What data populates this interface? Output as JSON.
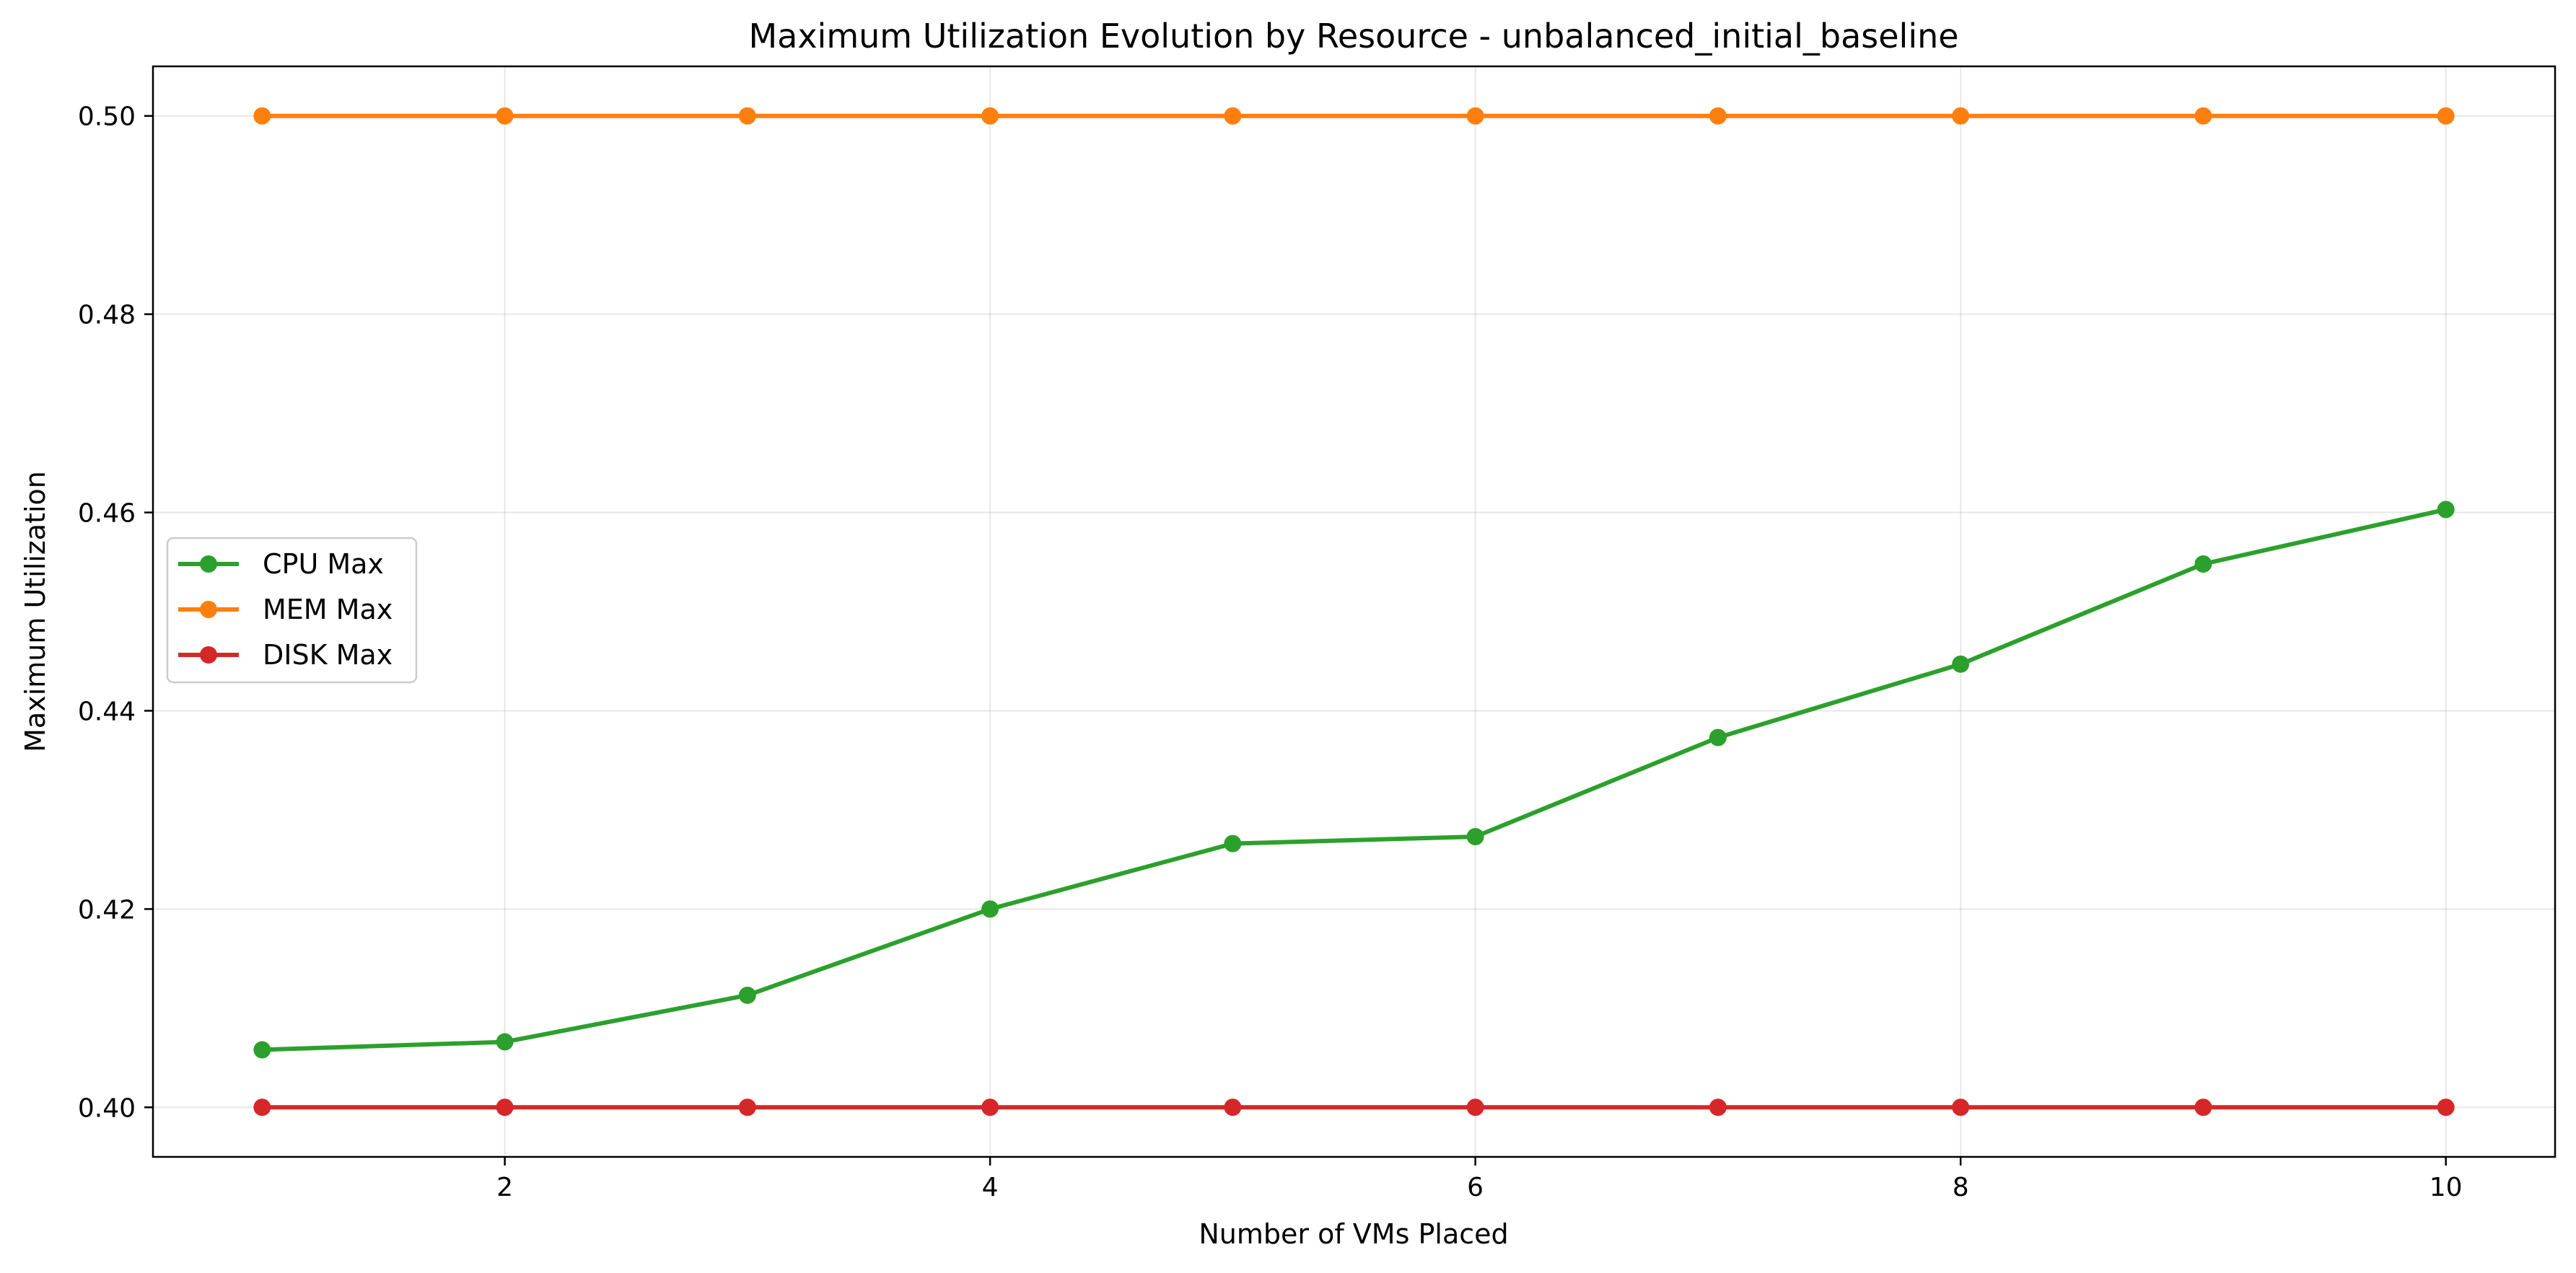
{
  "chart_data": {
    "type": "line",
    "title": "Maximum Utilization Evolution by Resource - unbalanced_initial_baseline",
    "xlabel": "Number of VMs Placed",
    "ylabel": "Maximum Utilization",
    "x": [
      1,
      2,
      3,
      4,
      5,
      6,
      7,
      8,
      9,
      10
    ],
    "xlim": [
      0.55,
      10.45
    ],
    "ylim": [
      0.395,
      0.505
    ],
    "xticks": [
      2,
      4,
      6,
      8,
      10
    ],
    "yticks": [
      0.4,
      0.42,
      0.44,
      0.46,
      0.48,
      0.5
    ],
    "xtick_labels": [
      "2",
      "4",
      "6",
      "8",
      "10"
    ],
    "ytick_labels": [
      "0.40",
      "0.42",
      "0.44",
      "0.46",
      "0.48",
      "0.50"
    ],
    "grid": true,
    "legend_position": "center-left",
    "series": [
      {
        "name": "CPU Max",
        "color": "#2ca02c",
        "values": [
          0.4058,
          0.4066,
          0.4113,
          0.42,
          0.4266,
          0.4273,
          0.4373,
          0.4447,
          0.4548,
          0.4603
        ]
      },
      {
        "name": "MEM Max",
        "color": "#ff7f0e",
        "values": [
          0.5,
          0.5,
          0.5,
          0.5,
          0.5,
          0.5,
          0.5,
          0.5,
          0.5,
          0.5
        ]
      },
      {
        "name": "DISK Max",
        "color": "#d62728",
        "values": [
          0.4,
          0.4,
          0.4,
          0.4,
          0.4,
          0.4,
          0.4,
          0.4,
          0.4,
          0.4
        ]
      }
    ]
  }
}
